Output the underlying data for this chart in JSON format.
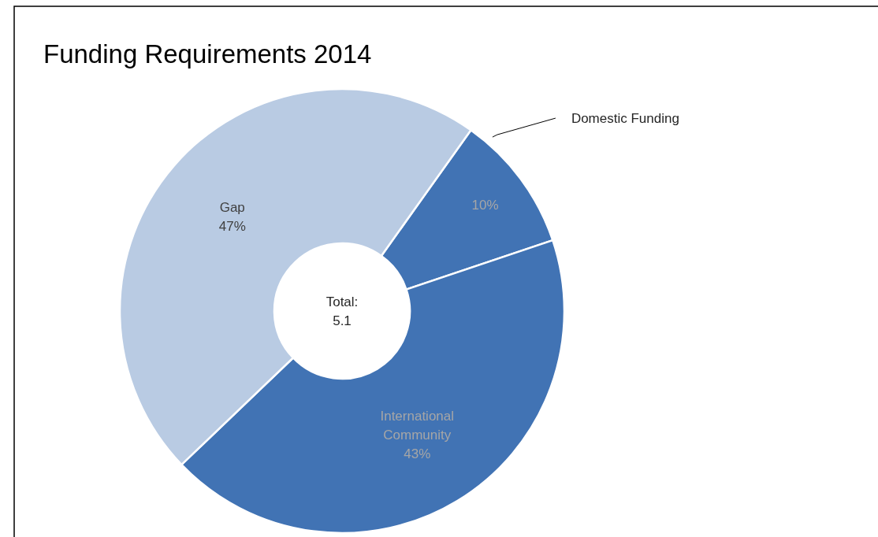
{
  "chart_data": {
    "type": "donut",
    "title": "Funding Requirements 2014",
    "categories": [
      "Domestic Funding",
      "International Community",
      "Gap"
    ],
    "values": [
      10,
      43,
      47
    ],
    "colors": [
      "#4173b4",
      "#4173b4",
      "#b9cbe3"
    ],
    "value_labels": [
      "10%",
      "43%",
      "47%"
    ],
    "annotations": [
      "Total: 5.1"
    ]
  }
}
